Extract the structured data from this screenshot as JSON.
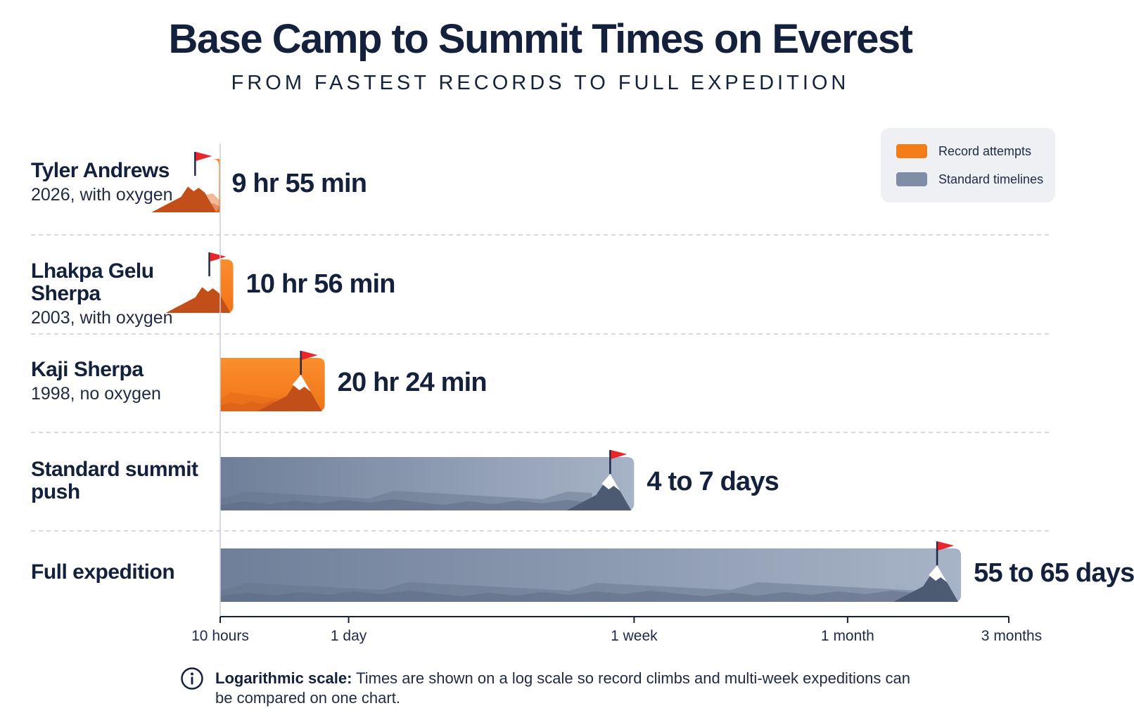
{
  "title": "Base Camp to Summit Times on Everest",
  "subtitle": "FROM FASTEST RECORDS TO FULL EXPEDITION",
  "legend": [
    {
      "label": "Record attempts",
      "color": "#f47d1a"
    },
    {
      "label": "Standard timelines",
      "color": "#7f8ea6"
    }
  ],
  "chart_data": {
    "type": "bar",
    "orientation": "horizontal",
    "scale": "log",
    "x_unit": "hours",
    "xlim_hours": [
      10,
      2160
    ],
    "xticks": [
      {
        "label": "10 hours",
        "hours": 10
      },
      {
        "label": "1 day",
        "hours": 24
      },
      {
        "label": "1 week",
        "hours": 168
      },
      {
        "label": "1 month",
        "hours": 720
      },
      {
        "label": "3 months",
        "hours": 2160
      }
    ],
    "grid": "horizontal dashed separators",
    "legend_position": "top-right",
    "bars": [
      {
        "name": "Tyler Andrews",
        "detail": "2026, with oxygen",
        "value_label": "9 hr 55 min",
        "hours": 9.92,
        "group": "Record attempts"
      },
      {
        "name": "Lhakpa Gelu Sherpa",
        "detail": "2003, with oxygen",
        "value_label": "10 hr 56 min",
        "hours": 10.93,
        "group": "Record attempts"
      },
      {
        "name": "Kaji Sherpa",
        "detail": "1998, no oxygen",
        "value_label": "20 hr 24 min",
        "hours": 20.4,
        "group": "Record attempts"
      },
      {
        "name": "Standard summit push",
        "detail": "",
        "value_label": "4 to 7 days",
        "hours": 168,
        "group": "Standard timelines"
      },
      {
        "name": "Full expedition",
        "detail": "",
        "value_label": "55 to 65 days",
        "hours": 1560,
        "group": "Standard timelines"
      }
    ]
  },
  "footnote": {
    "bold": "Logarithmic scale:",
    "text": "Times are shown on a log scale so record climbs and multi-week expeditions can be compared on one chart."
  }
}
